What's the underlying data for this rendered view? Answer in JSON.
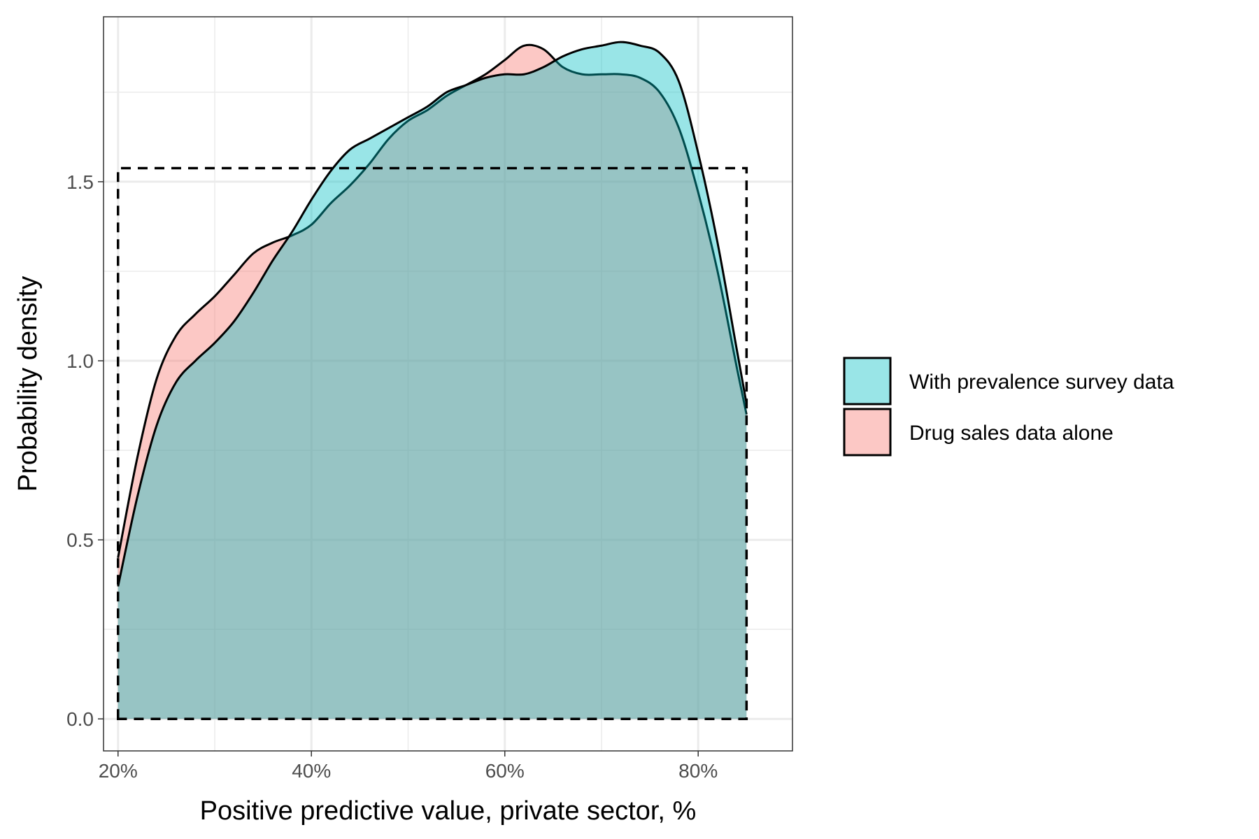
{
  "chart_data": {
    "type": "area",
    "title": "",
    "xlabel": "Positive predictive value, private sector, %",
    "ylabel": "Probability density",
    "xlim": [
      0.185,
      0.8975
    ],
    "ylim": [
      -0.0894,
      1.9606
    ],
    "x_ticks": [
      {
        "value": 0.2,
        "label": "20%"
      },
      {
        "value": 0.4,
        "label": "40%"
      },
      {
        "value": 0.6,
        "label": "60%"
      },
      {
        "value": 0.8,
        "label": "80%"
      }
    ],
    "y_ticks": [
      {
        "value": 0.0,
        "label": "0.0"
      },
      {
        "value": 0.5,
        "label": "0.5"
      },
      {
        "value": 1.0,
        "label": "1.0"
      },
      {
        "value": 1.5,
        "label": "1.5"
      }
    ],
    "x_minor_ticks": [
      0.3,
      0.5,
      0.7
    ],
    "y_minor_ticks": [
      0.25,
      0.75,
      1.25,
      1.75
    ],
    "grid": true,
    "legend_position": "right",
    "series": [
      {
        "name": "Drug sales data alone",
        "color": "#F8766D",
        "fill_opacity": 0.4,
        "x": [
          0.2,
          0.22,
          0.24,
          0.26,
          0.28,
          0.3,
          0.32,
          0.34,
          0.36,
          0.38,
          0.4,
          0.42,
          0.44,
          0.46,
          0.48,
          0.5,
          0.52,
          0.54,
          0.56,
          0.58,
          0.6,
          0.62,
          0.64,
          0.66,
          0.68,
          0.7,
          0.72,
          0.74,
          0.76,
          0.78,
          0.8,
          0.82,
          0.84,
          0.85
        ],
        "y": [
          0.45,
          0.73,
          0.95,
          1.07,
          1.13,
          1.18,
          1.24,
          1.3,
          1.33,
          1.35,
          1.38,
          1.44,
          1.49,
          1.55,
          1.62,
          1.67,
          1.7,
          1.74,
          1.77,
          1.8,
          1.84,
          1.88,
          1.87,
          1.82,
          1.8,
          1.8,
          1.8,
          1.79,
          1.75,
          1.65,
          1.47,
          1.25,
          0.98,
          0.85
        ]
      },
      {
        "name": "With prevalence survey data",
        "color": "#00BFC4",
        "fill_opacity": 0.4,
        "x": [
          0.2,
          0.22,
          0.24,
          0.26,
          0.28,
          0.3,
          0.32,
          0.34,
          0.36,
          0.38,
          0.4,
          0.42,
          0.44,
          0.46,
          0.48,
          0.5,
          0.52,
          0.54,
          0.56,
          0.58,
          0.6,
          0.62,
          0.64,
          0.66,
          0.68,
          0.7,
          0.72,
          0.74,
          0.76,
          0.78,
          0.8,
          0.82,
          0.84,
          0.85
        ],
        "y": [
          0.37,
          0.62,
          0.82,
          0.94,
          1.0,
          1.05,
          1.11,
          1.19,
          1.28,
          1.36,
          1.45,
          1.53,
          1.59,
          1.62,
          1.65,
          1.68,
          1.71,
          1.75,
          1.77,
          1.79,
          1.8,
          1.8,
          1.82,
          1.85,
          1.87,
          1.88,
          1.89,
          1.88,
          1.86,
          1.78,
          1.58,
          1.33,
          1.03,
          0.88
        ]
      }
    ],
    "reference_uniform": {
      "x_min": 0.2,
      "x_max": 0.85,
      "density": 1.538
    }
  }
}
